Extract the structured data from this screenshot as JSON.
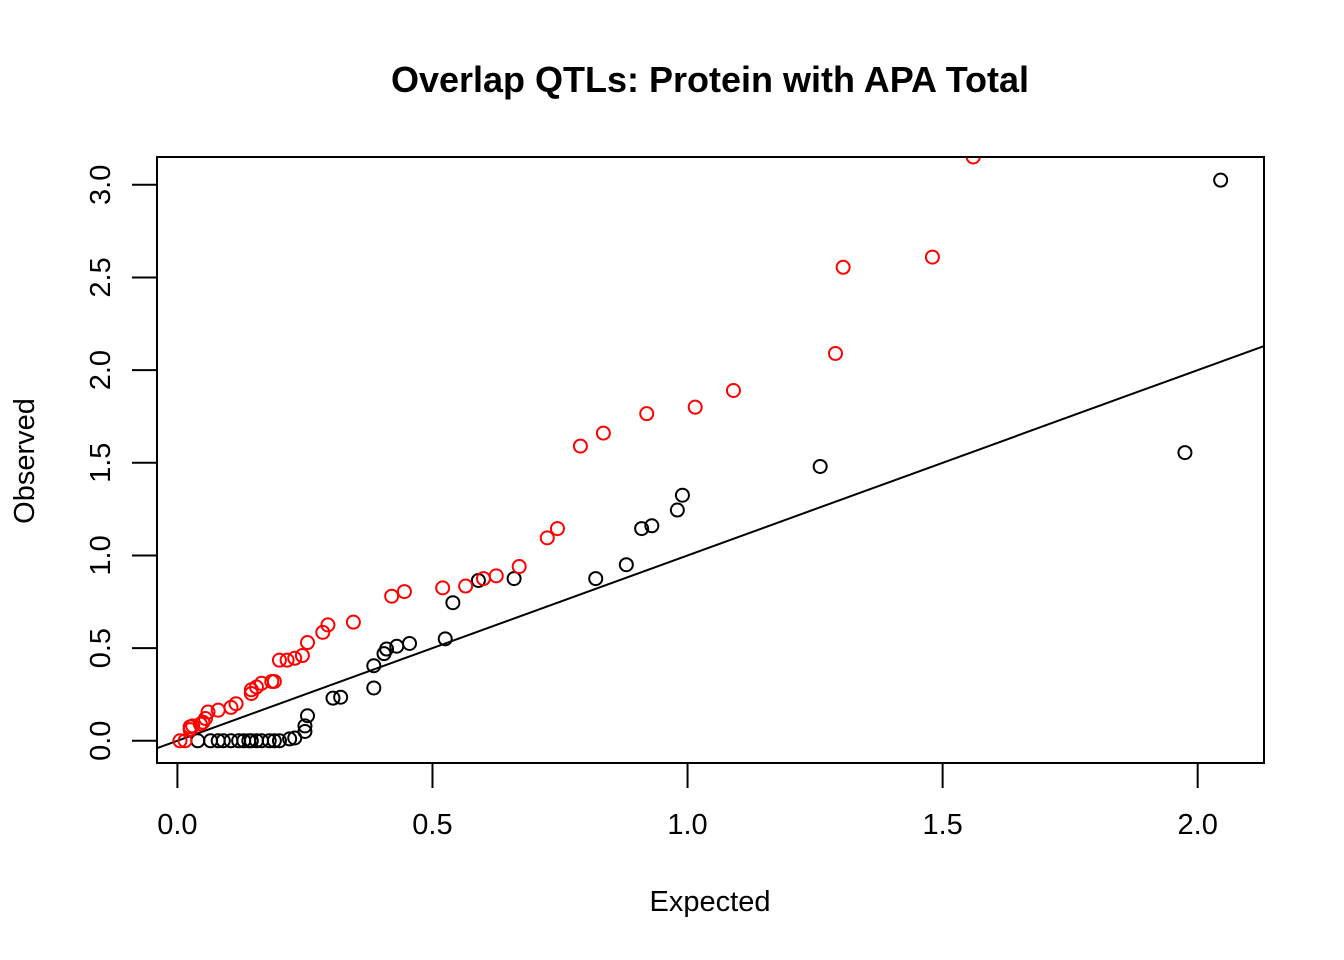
{
  "chart_data": {
    "type": "scatter",
    "title": "Overlap QTLs: Protein with APA Total",
    "xlabel": "Expected",
    "ylabel": "Observed",
    "xlim": [
      -0.04,
      2.13
    ],
    "ylim": [
      -0.12,
      3.15
    ],
    "xticks": [
      "0.0",
      "0.5",
      "1.0",
      "1.5",
      "2.0"
    ],
    "yticks": [
      "0.0",
      "0.5",
      "1.0",
      "1.5",
      "2.0",
      "2.5",
      "3.0"
    ],
    "grid": false,
    "legend": "none",
    "reference_line": {
      "slope": 1,
      "intercept": 0,
      "color": "#000000"
    },
    "series": [
      {
        "color": "#000000",
        "points": [
          [
            0.04,
            0.0
          ],
          [
            0.065,
            0.0
          ],
          [
            0.08,
            0.0
          ],
          [
            0.09,
            0.0
          ],
          [
            0.105,
            0.0
          ],
          [
            0.12,
            0.0
          ],
          [
            0.13,
            0.0
          ],
          [
            0.14,
            0.0
          ],
          [
            0.145,
            0.0
          ],
          [
            0.155,
            0.0
          ],
          [
            0.165,
            0.0
          ],
          [
            0.18,
            0.0
          ],
          [
            0.19,
            0.0
          ],
          [
            0.2,
            0.0
          ],
          [
            0.22,
            0.01
          ],
          [
            0.23,
            0.015
          ],
          [
            0.25,
            0.05
          ],
          [
            0.25,
            0.08
          ],
          [
            0.255,
            0.135
          ],
          [
            0.305,
            0.23
          ],
          [
            0.32,
            0.235
          ],
          [
            0.385,
            0.285
          ],
          [
            0.385,
            0.405
          ],
          [
            0.405,
            0.47
          ],
          [
            0.41,
            0.495
          ],
          [
            0.43,
            0.51
          ],
          [
            0.455,
            0.525
          ],
          [
            0.525,
            0.55
          ],
          [
            0.54,
            0.745
          ],
          [
            0.59,
            0.865
          ],
          [
            0.66,
            0.875
          ],
          [
            0.82,
            0.875
          ],
          [
            0.88,
            0.95
          ],
          [
            0.91,
            1.145
          ],
          [
            0.93,
            1.16
          ],
          [
            0.98,
            1.245
          ],
          [
            0.99,
            1.325
          ],
          [
            1.26,
            1.48
          ],
          [
            1.975,
            1.555
          ],
          [
            2.045,
            3.025
          ]
        ]
      },
      {
        "color": "#ff0000",
        "points": [
          [
            0.005,
            0.0
          ],
          [
            0.015,
            0.0
          ],
          [
            0.025,
            0.06
          ],
          [
            0.025,
            0.075
          ],
          [
            0.03,
            0.08
          ],
          [
            0.045,
            0.09
          ],
          [
            0.05,
            0.1
          ],
          [
            0.055,
            0.12
          ],
          [
            0.06,
            0.155
          ],
          [
            0.08,
            0.165
          ],
          [
            0.105,
            0.18
          ],
          [
            0.115,
            0.2
          ],
          [
            0.145,
            0.255
          ],
          [
            0.145,
            0.275
          ],
          [
            0.155,
            0.29
          ],
          [
            0.165,
            0.31
          ],
          [
            0.185,
            0.32
          ],
          [
            0.19,
            0.32
          ],
          [
            0.2,
            0.435
          ],
          [
            0.215,
            0.435
          ],
          [
            0.23,
            0.445
          ],
          [
            0.245,
            0.46
          ],
          [
            0.255,
            0.53
          ],
          [
            0.285,
            0.585
          ],
          [
            0.295,
            0.625
          ],
          [
            0.345,
            0.64
          ],
          [
            0.42,
            0.78
          ],
          [
            0.445,
            0.805
          ],
          [
            0.52,
            0.825
          ],
          [
            0.565,
            0.835
          ],
          [
            0.6,
            0.875
          ],
          [
            0.625,
            0.89
          ],
          [
            0.67,
            0.94
          ],
          [
            0.725,
            1.095
          ],
          [
            0.745,
            1.145
          ],
          [
            0.79,
            1.59
          ],
          [
            0.835,
            1.66
          ],
          [
            0.92,
            1.765
          ],
          [
            1.015,
            1.8
          ],
          [
            1.09,
            1.89
          ],
          [
            1.29,
            2.09
          ],
          [
            1.305,
            2.555
          ],
          [
            1.48,
            2.61
          ],
          [
            1.56,
            3.15
          ]
        ]
      }
    ]
  }
}
